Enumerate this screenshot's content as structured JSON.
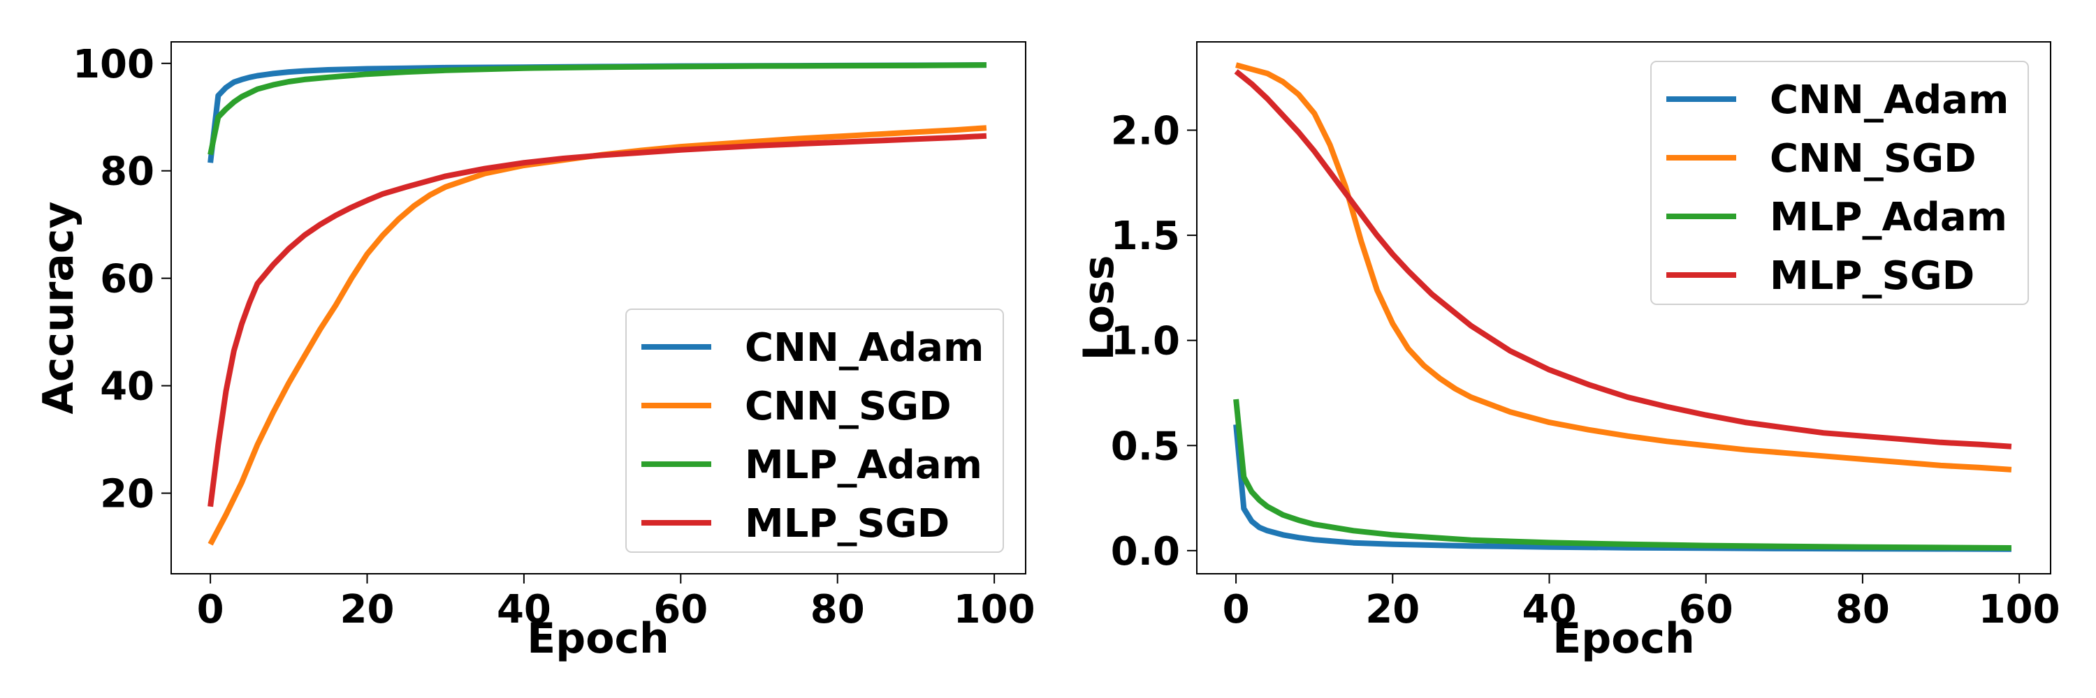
{
  "chart_data": [
    {
      "type": "line",
      "title": "",
      "xlabel": "Epoch",
      "ylabel": "Accuracy",
      "xlim": [
        -5,
        104
      ],
      "ylim": [
        5,
        104
      ],
      "xticks": [
        0,
        20,
        40,
        60,
        80,
        100
      ],
      "yticks": [
        20,
        40,
        60,
        80,
        100
      ],
      "ytick_format": "int",
      "grid": false,
      "legend_position": "lower-right",
      "series": [
        {
          "name": "CNN_Adam",
          "color": "#1f77b4",
          "x": [
            0,
            1,
            2,
            3,
            4,
            5,
            6,
            8,
            10,
            12,
            15,
            20,
            25,
            30,
            40,
            50,
            60,
            70,
            80,
            90,
            99
          ],
          "y": [
            81.5,
            94,
            95.5,
            96.5,
            97,
            97.4,
            97.7,
            98.1,
            98.4,
            98.6,
            98.8,
            99.0,
            99.1,
            99.2,
            99.3,
            99.4,
            99.5,
            99.55,
            99.6,
            99.65,
            99.7
          ]
        },
        {
          "name": "CNN_SGD",
          "color": "#ff7f0e",
          "x": [
            0,
            2,
            4,
            6,
            8,
            10,
            12,
            14,
            16,
            18,
            20,
            22,
            24,
            26,
            28,
            30,
            35,
            40,
            45,
            50,
            55,
            60,
            65,
            70,
            75,
            80,
            85,
            90,
            95,
            99
          ],
          "y": [
            10.5,
            16,
            22,
            29,
            35,
            40.5,
            45.5,
            50.5,
            55,
            60,
            64.5,
            68,
            71,
            73.5,
            75.5,
            77,
            79.5,
            81,
            82,
            83,
            83.8,
            84.5,
            85,
            85.5,
            86,
            86.4,
            86.8,
            87.2,
            87.6,
            88
          ]
        },
        {
          "name": "MLP_Adam",
          "color": "#2ca02c",
          "x": [
            0,
            1,
            2,
            3,
            4,
            5,
            6,
            8,
            10,
            12,
            15,
            20,
            25,
            30,
            40,
            50,
            60,
            70,
            80,
            90,
            99
          ],
          "y": [
            83,
            90,
            91.5,
            92.8,
            93.8,
            94.5,
            95.2,
            96,
            96.6,
            97,
            97.4,
            98,
            98.4,
            98.7,
            99.1,
            99.3,
            99.4,
            99.5,
            99.55,
            99.6,
            99.7
          ]
        },
        {
          "name": "MLP_SGD",
          "color": "#d62728",
          "x": [
            0,
            1,
            2,
            3,
            4,
            5,
            6,
            8,
            10,
            12,
            14,
            16,
            18,
            20,
            22,
            25,
            30,
            35,
            40,
            45,
            50,
            55,
            60,
            65,
            70,
            75,
            80,
            85,
            90,
            95,
            99
          ],
          "y": [
            17.5,
            29,
            39,
            46.5,
            51.5,
            55.5,
            59,
            62.5,
            65.5,
            68,
            70,
            71.7,
            73.2,
            74.5,
            75.7,
            77,
            79,
            80.4,
            81.5,
            82.3,
            82.9,
            83.4,
            83.9,
            84.3,
            84.7,
            85.0,
            85.3,
            85.6,
            85.9,
            86.2,
            86.5
          ]
        }
      ]
    },
    {
      "type": "line",
      "title": "",
      "xlabel": "Epoch",
      "ylabel": "Loss",
      "xlim": [
        -5,
        104
      ],
      "ylim": [
        -0.11,
        2.42
      ],
      "xticks": [
        0,
        20,
        40,
        60,
        80,
        100
      ],
      "yticks": [
        0.0,
        0.5,
        1.0,
        1.5,
        2.0
      ],
      "ytick_format": "1f",
      "grid": false,
      "legend_position": "upper-right",
      "series": [
        {
          "name": "CNN_Adam",
          "color": "#1f77b4",
          "x": [
            0,
            1,
            2,
            3,
            4,
            6,
            8,
            10,
            15,
            20,
            30,
            40,
            50,
            60,
            70,
            80,
            90,
            99
          ],
          "y": [
            0.6,
            0.2,
            0.14,
            0.11,
            0.095,
            0.075,
            0.062,
            0.052,
            0.037,
            0.03,
            0.022,
            0.017,
            0.014,
            0.012,
            0.01,
            0.009,
            0.008,
            0.007
          ]
        },
        {
          "name": "CNN_SGD",
          "color": "#ff7f0e",
          "x": [
            0,
            2,
            4,
            6,
            8,
            10,
            12,
            14,
            16,
            18,
            20,
            22,
            24,
            26,
            28,
            30,
            35,
            40,
            45,
            50,
            55,
            60,
            65,
            70,
            75,
            80,
            85,
            90,
            95,
            99
          ],
          "y": [
            2.31,
            2.29,
            2.27,
            2.23,
            2.17,
            2.08,
            1.93,
            1.73,
            1.47,
            1.24,
            1.08,
            0.96,
            0.88,
            0.82,
            0.77,
            0.73,
            0.66,
            0.61,
            0.575,
            0.545,
            0.52,
            0.5,
            0.48,
            0.465,
            0.45,
            0.435,
            0.42,
            0.405,
            0.395,
            0.385
          ]
        },
        {
          "name": "MLP_Adam",
          "color": "#2ca02c",
          "x": [
            0,
            1,
            2,
            3,
            4,
            6,
            8,
            10,
            15,
            20,
            30,
            40,
            50,
            60,
            70,
            80,
            90,
            99
          ],
          "y": [
            0.72,
            0.35,
            0.28,
            0.24,
            0.21,
            0.17,
            0.145,
            0.125,
            0.095,
            0.075,
            0.05,
            0.038,
            0.03,
            0.024,
            0.02,
            0.017,
            0.015,
            0.013
          ]
        },
        {
          "name": "MLP_SGD",
          "color": "#d62728",
          "x": [
            0,
            2,
            4,
            6,
            8,
            10,
            12,
            14,
            16,
            18,
            20,
            22,
            25,
            30,
            35,
            40,
            45,
            50,
            55,
            60,
            65,
            70,
            75,
            80,
            85,
            90,
            95,
            99
          ],
          "y": [
            2.28,
            2.22,
            2.15,
            2.07,
            1.99,
            1.9,
            1.8,
            1.7,
            1.6,
            1.5,
            1.41,
            1.33,
            1.22,
            1.07,
            0.95,
            0.86,
            0.79,
            0.73,
            0.685,
            0.645,
            0.61,
            0.585,
            0.56,
            0.545,
            0.53,
            0.515,
            0.505,
            0.495
          ]
        }
      ]
    }
  ]
}
